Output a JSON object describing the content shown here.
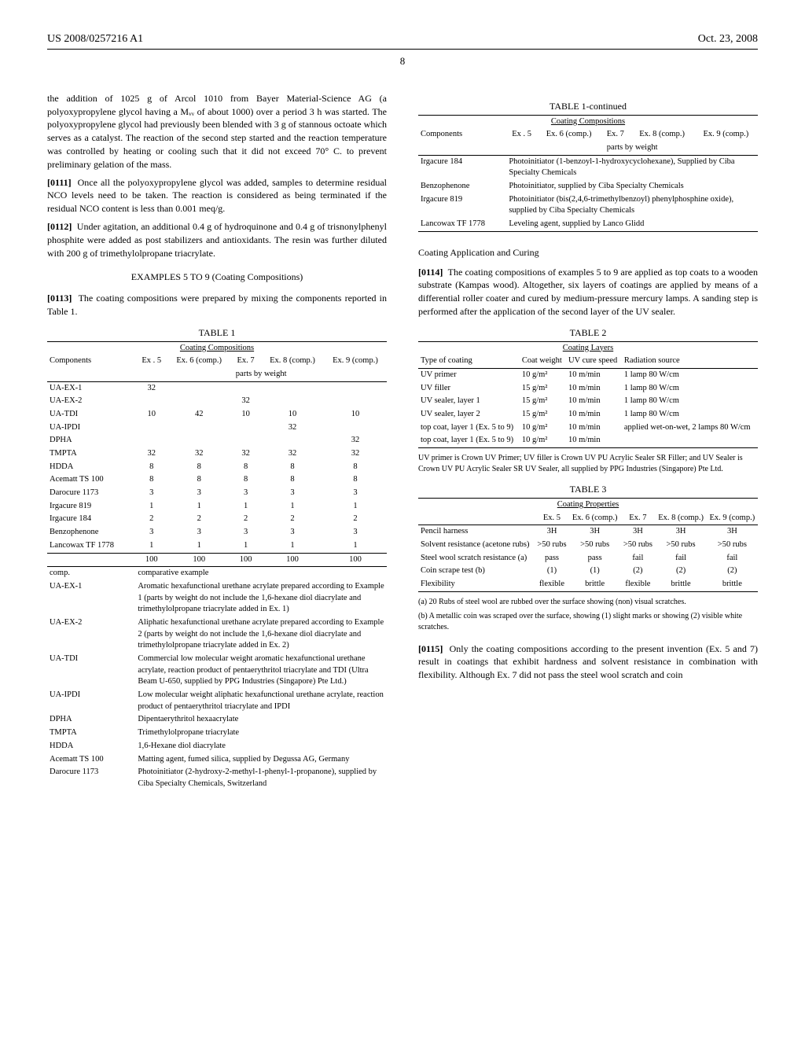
{
  "header": {
    "left": "US 2008/0257216 A1",
    "right": "Oct. 23, 2008"
  },
  "page_number": "8",
  "left_col": {
    "para1": "the addition of 1025 g of Arcol 1010 from Bayer Material-Science AG (a polyoxypropylene glycol having a Mᵥᵥ of about 1000) over a period 3 h was started. The polyoxypropylene glycol had previously been blended with 3 g of stannous octoate which serves as a catalyst. The reaction of the second step started and the reaction temperature was controlled by heating or cooling such that it did not exceed 70° C. to prevent preliminary gelation of the mass.",
    "para2_num": "[0111]",
    "para2": "Once all the polyoxypropylene glycol was added, samples to determine residual NCO levels need to be taken. The reaction is considered as being terminated if the residual NCO content is less than 0.001 meq/g.",
    "para3_num": "[0112]",
    "para3": "Under agitation, an additional 0.4 g of hydroquinone and 0.4 g of trisnonylphenyl phosphite were added as post stabilizers and antioxidants. The resin was further diluted with 200 g of trimethylolpropane triacrylate.",
    "examples_title": "EXAMPLES 5 TO 9 (Coating Compositions)",
    "para4_num": "[0113]",
    "para4": "The coating compositions were prepared by mixing the components reported in Table 1.",
    "table1_caption": "TABLE 1",
    "table1_sub": "Coating Compositions",
    "table1_header_sub": "parts by weight",
    "table1_cols": [
      "Components",
      "Ex . 5",
      "Ex. 6 (comp.)",
      "Ex. 7",
      "Ex. 8 (comp.)",
      "Ex. 9 (comp.)"
    ],
    "table1_rows": [
      [
        "UA-EX-1",
        "32",
        "",
        "",
        "",
        ""
      ],
      [
        "UA-EX-2",
        "",
        "",
        "32",
        "",
        ""
      ],
      [
        "UA-TDI",
        "10",
        "42",
        "10",
        "10",
        "10"
      ],
      [
        "UA-IPDI",
        "",
        "",
        "",
        "32",
        ""
      ],
      [
        "DPHA",
        "",
        "",
        "",
        "",
        "32"
      ],
      [
        "TMPTA",
        "32",
        "32",
        "32",
        "32",
        "32"
      ],
      [
        "HDDA",
        "8",
        "8",
        "8",
        "8",
        "8"
      ],
      [
        "Acematt TS 100",
        "8",
        "8",
        "8",
        "8",
        "8"
      ],
      [
        "Darocure 1173",
        "3",
        "3",
        "3",
        "3",
        "3"
      ],
      [
        "Irgacure 819",
        "1",
        "1",
        "1",
        "1",
        "1"
      ],
      [
        "Irgacure 184",
        "2",
        "2",
        "2",
        "2",
        "2"
      ],
      [
        "Benzophenone",
        "3",
        "3",
        "3",
        "3",
        "3"
      ],
      [
        "Lancowax TF 1778",
        "1",
        "1",
        "1",
        "1",
        "1"
      ]
    ],
    "table1_total": [
      "",
      "100",
      "100",
      "100",
      "100",
      "100"
    ],
    "table1_desc": [
      [
        "comp.",
        "comparative example"
      ],
      [
        "UA-EX-1",
        "Aromatic hexafunctional urethane acrylate prepared according to Example 1 (parts by weight do not include the 1,6-hexane diol diacrylate and trimethylolpropane triacrylate added in Ex. 1)"
      ],
      [
        "UA-EX-2",
        "Aliphatic hexafunctional urethane acrylate prepared according to Example 2 (parts by weight do not include the 1,6-hexane diol diacrylate and trimethylolpropane triacrylate added in Ex. 2)"
      ],
      [
        "UA-TDI",
        "Commercial low molecular weight aromatic hexafunctional urethane acrylate, reaction product of pentaerythritol triacrylate and TDI (Ultra Beam U-650, supplied by PPG Industries (Singapore) Pte Ltd.)"
      ],
      [
        "UA-IPDI",
        "Low molecular weight aliphatic hexafunctional urethane acrylate, reaction product of pentaerythritol triacrylate and IPDI"
      ],
      [
        "DPHA",
        "Dipentaerythritol hexaacrylate"
      ],
      [
        "TMPTA",
        "Trimethylolpropane triacrylate"
      ],
      [
        "HDDA",
        "1,6-Hexane diol diacrylate"
      ],
      [
        "Acematt TS 100",
        "Matting agent, fumed silica, supplied by Degussa AG, Germany"
      ],
      [
        "Darocure 1173",
        "Photoinitiator (2-hydroxy-2-methyl-1-phenyl-1-propanone), supplied by Ciba Specialty Chemicals, Switzerland"
      ]
    ]
  },
  "right_col": {
    "table1c_caption": "TABLE 1-continued",
    "table1c_sub": "Coating Compositions",
    "table1c_header_sub": "parts by weight",
    "table1c_cols": [
      "Components",
      "Ex . 5",
      "Ex. 6 (comp.)",
      "Ex. 7",
      "Ex. 8 (comp.)",
      "Ex. 9 (comp.)"
    ],
    "table1c_rows": [
      [
        "Irgacure 184",
        "Photoinitiator (1-benzoyl-1-hydroxycyclohexane), Supplied by Ciba Specialty Chemicals"
      ],
      [
        "Benzophenone",
        "Photoinitiator, supplied by Ciba Specialty Chemicals"
      ],
      [
        "Irgacure 819",
        "Photoinitiator (bis(2,4,6-trimethylbenzoyl) phenylphosphine oxide), supplied by Ciba Specialty Chemicals"
      ],
      [
        "Lancowax TF 1778",
        "Leveling agent, supplied by Lanco Glidd"
      ]
    ],
    "subhead1": "Coating Application and Curing",
    "para5_num": "[0114]",
    "para5": "The coating compositions of examples 5 to 9 are applied as top coats to a wooden substrate (Kampas wood). Altogether, six layers of coatings are applied by means of a differential roller coater and cured by medium-pressure mercury lamps. A sanding step is performed after the application of the second layer of the UV sealer.",
    "table2_caption": "TABLE 2",
    "table2_sub": "Coating Layers",
    "table2_cols": [
      "Type of coating",
      "Coat weight",
      "UV cure speed",
      "Radiation source"
    ],
    "table2_rows": [
      [
        "UV primer",
        "10 g/m²",
        "10 m/min",
        "1 lamp 80 W/cm"
      ],
      [
        "UV filler",
        "15 g/m²",
        "10 m/min",
        "1 lamp 80 W/cm"
      ],
      [
        "UV sealer, layer 1",
        "15 g/m²",
        "10 m/min",
        "1 lamp 80 W/cm"
      ],
      [
        "UV sealer, layer 2",
        "15 g/m²",
        "10 m/min",
        "1 lamp 80 W/cm"
      ],
      [
        "top coat, layer 1 (Ex. 5 to 9)",
        "10 g/m²",
        "10 m/min",
        "applied wet-on-wet, 2 lamps 80 W/cm"
      ],
      [
        "top coat, layer 1 (Ex. 5 to 9)",
        "10 g/m²",
        "10 m/min",
        ""
      ]
    ],
    "table2_note": "UV primer is Crown UV Primer; UV filler is Crown UV PU Acrylic Sealer SR Filler; and UV Sealer is Crown UV PU Acrylic Sealer SR UV Sealer, all supplied by PPG Industries (Singapore) Pte Ltd.",
    "table3_caption": "TABLE 3",
    "table3_sub": "Coating Properties",
    "table3_cols": [
      "",
      "Ex. 5",
      "Ex. 6 (comp.)",
      "Ex. 7",
      "Ex. 8 (comp.)",
      "Ex. 9 (comp.)"
    ],
    "table3_rows": [
      [
        "Pencil harness",
        "3H",
        "3H",
        "3H",
        "3H",
        "3H"
      ],
      [
        "Solvent resistance (acetone rubs)",
        ">50 rubs",
        ">50 rubs",
        ">50 rubs",
        ">50 rubs",
        ">50 rubs"
      ],
      [
        "Steel wool scratch resistance (a)",
        "pass",
        "pass",
        "fail",
        "fail",
        "fail"
      ],
      [
        "Coin scrape test (b)",
        "(1)",
        "(1)",
        "(2)",
        "(2)",
        "(2)"
      ],
      [
        "Flexibility",
        "flexible",
        "brittle",
        "flexible",
        "brittle",
        "brittle"
      ]
    ],
    "table3_note_a": "(a) 20 Rubs of steel wool are rubbed over the surface showing (non) visual scratches.",
    "table3_note_b": "(b) A metallic coin was scraped over the surface, showing (1) slight marks or showing (2) visible white scratches.",
    "para6_num": "[0115]",
    "para6": "Only the coating compositions according to the present invention (Ex. 5 and 7) result in coatings that exhibit hardness and solvent resistance in combination with flexibility. Although Ex. 7 did not pass the steel wool scratch and coin"
  }
}
